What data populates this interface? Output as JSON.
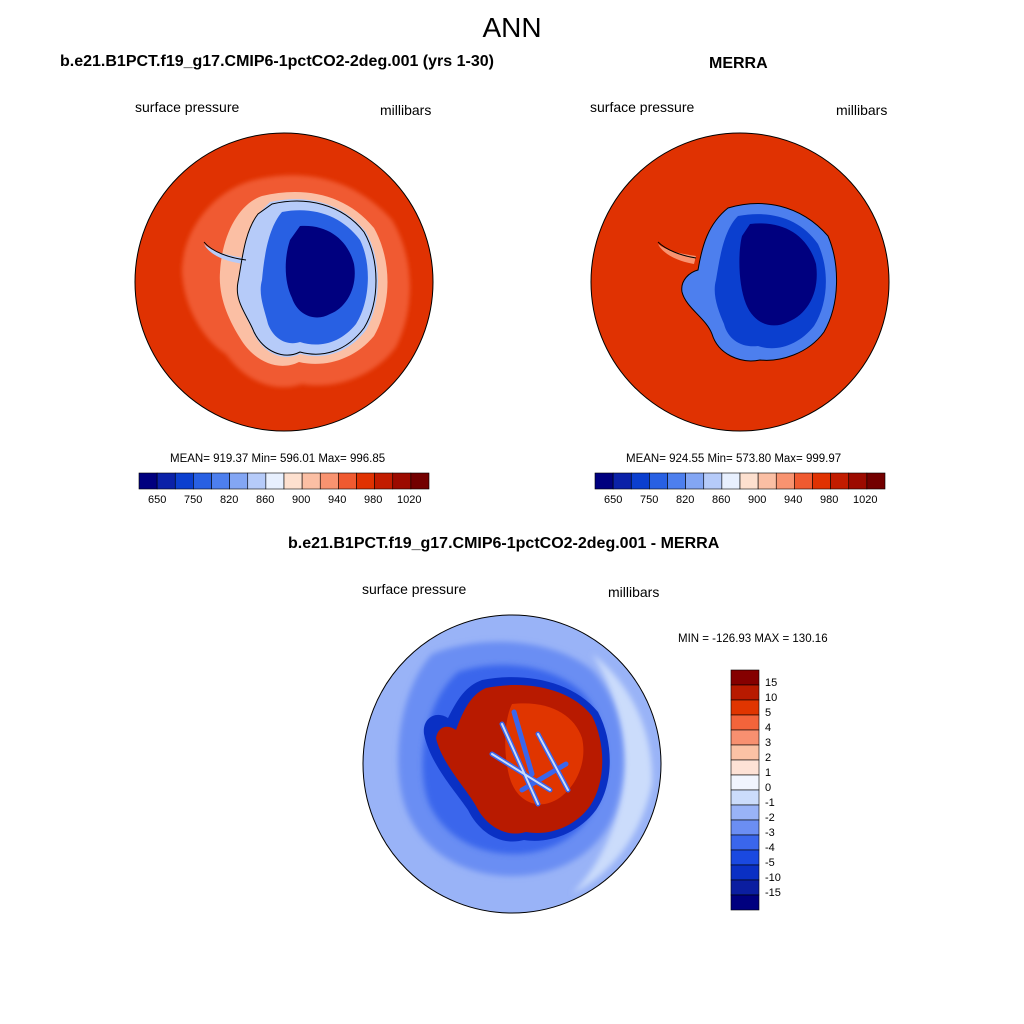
{
  "main_title": "ANN",
  "palette": {
    "abs": [
      "#00007f",
      "#0a21a8",
      "#0b3fcf",
      "#2860e3",
      "#4d7fee",
      "#83a6f4",
      "#b6cbf9",
      "#e8f0fe",
      "#fde0cf",
      "#fbbfa4",
      "#f89370",
      "#f05a30",
      "#e03202",
      "#c21c00",
      "#9c0a00",
      "#730000"
    ],
    "diff": [
      "#00007f",
      "#0b1ea0",
      "#0a30c4",
      "#1a49e0",
      "#3a66ec",
      "#6b8ef3",
      "#99b3f7",
      "#cbdcfb",
      "#f1f5fe",
      "#fde2d6",
      "#fbc2a5",
      "#f89070",
      "#f3643b",
      "#e03500",
      "#b81a00",
      "#850000"
    ]
  },
  "panels": [
    {
      "title": "b.e21.B1PCT.f19_g17.CMIP6-1pctCO2-2deg.001 (yrs 1-30)",
      "variable": "surface pressure",
      "units": "millibars",
      "stats": "MEAN= 919.37   Min= 596.01   Max= 996.85",
      "colorbar_labels": [
        "650",
        "750",
        "820",
        "860",
        "900",
        "940",
        "980",
        "1020"
      ]
    },
    {
      "title": "MERRA",
      "variable": "surface pressure",
      "units": "millibars",
      "stats": "MEAN= 924.55   Min= 573.80   Max= 999.97",
      "colorbar_labels": [
        "650",
        "750",
        "820",
        "860",
        "900",
        "940",
        "980",
        "1020"
      ]
    },
    {
      "title": "b.e21.B1PCT.f19_g17.CMIP6-1pctCO2-2deg.001 - MERRA",
      "variable": "surface pressure",
      "units": "millibars",
      "stats": "MIN = -126.93 MAX = 130.16",
      "colorbar_labels": [
        "15",
        "10",
        "5",
        "4",
        "3",
        "2",
        "1",
        "0",
        "-1",
        "-2",
        "-3",
        "-4",
        "-5",
        "-10",
        "-15"
      ]
    }
  ]
}
